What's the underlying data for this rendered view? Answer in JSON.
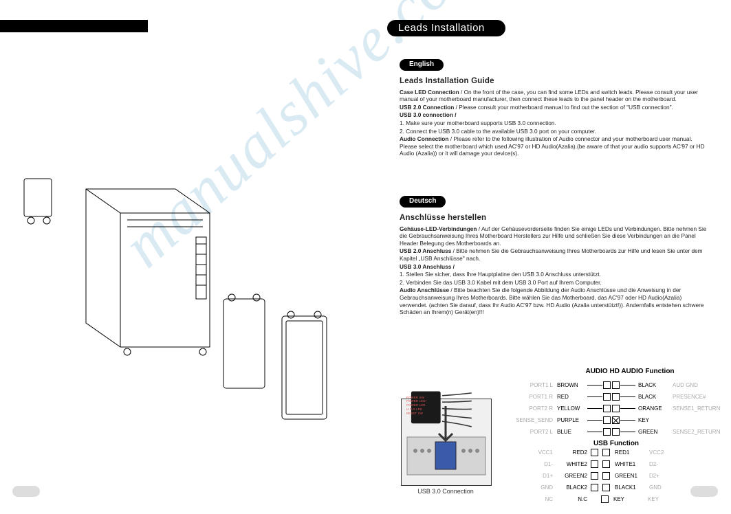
{
  "watermark": "manualshive.com",
  "header": {
    "title": "Leads Installation"
  },
  "english": {
    "lang": "English",
    "h": "Leads Installation Guide",
    "p1b": "Case LED Connection",
    "p1": " / On the front of the case, you can find some LEDs and switch leads. Please consult your user manual of your motherboard manufacturer, then connect these leads to the panel header on the motherboard.",
    "p2b": "USB 2.0 Connection",
    "p2": " / Please consult your motherboard manual to find out the section of \"USB connection\".",
    "p3b": "USB 3.0 connection /",
    "p3a": "1. Make sure your motherboard supports USB 3.0 connection.",
    "p3c": "2. Connect the USB 3.0 cable to the available USB 3.0 port on your computer.",
    "p4b": "Audio Connection",
    "p4": " / Please refer to the following illustration of Audio connector and your motherboard user manual. Please select the motherboard which used AC'97 or HD Audio(Azalia).(be aware of that your audio supports AC'97 or HD Audio (Azalia)) or it will damage your device(s)."
  },
  "deutsch": {
    "lang": "Deutsch",
    "h": "Anschlüsse herstellen",
    "p1b": "Gehäuse-LED-Verbindungen",
    "p1": " / Auf der Gehäusevorderseite finden Sie einige LEDs und Verbindungen. Bitte nehmen Sie die Gebrauchsanweisung Ihres Motherboard Herstellers zur Hilfe und schließen Sie diese Verbindungen an die Panel Header Belegung des Motherboards an.",
    "p2b": "USB 2.0 Anschluss",
    "p2": " / Bitte nehmen Sie die Gebrauchsanweisung Ihres Motherboards zur Hilfe und lesen Sie unter dem Kapitel „USB Anschlüsse\" nach.",
    "p3b": "USB 3.0 Anschluss /",
    "p3a": "1. Stellen Sie sicher, dass Ihre Hauptplatine den USB 3.0 Anschluss unterstützt.",
    "p3c": "2. Verbinden Sie das USB 3.0 Kabel mit dem USB 3.0 Port auf Ihrem Computer.",
    "p4b": "Audio Anschlüsse",
    "p4": " / Bitte beachten Sie die folgende Abbildung der Audio Anschlüsse und die Anweisung in der Gebrauchsanweisung Ihres Motherboards. Bitte wählen Sie das Motherboard, das AC'97 oder HD Audio(Azalia) verwendet. (achten Sie darauf, dass Ihr Audio AC'97 bzw. HD Audio (Azalia unterstützt!)). Andernfalls entstehen schwere Schäden an Ihrem(n) Gerät(en)!!!"
  },
  "audio": {
    "title": "AUDIO HD AUDIO Function",
    "rows": [
      {
        "lg": "PORT1 L",
        "lc": "BROWN",
        "rc": "BLACK",
        "rg": "AUD GND"
      },
      {
        "lg": "PORT1 R",
        "lc": "RED",
        "rc": "BLACK",
        "rg": "PRESENCE#"
      },
      {
        "lg": "PORT2 R",
        "lc": "YELLOW",
        "rc": "ORANGE",
        "rg": "SENSE1_RETURN"
      },
      {
        "lg": "SENSE_SEND",
        "lc": "PURPLE",
        "rc": "KEY",
        "rg": "",
        "nobox": true
      },
      {
        "lg": "PORT2 L",
        "lc": "BLUE",
        "rc": "GREEN",
        "rg": "SENSE2_RETURN"
      }
    ],
    "colors": {
      "grey": "#aaaaaa",
      "text": "#000000"
    }
  },
  "usb": {
    "title": "USB Function",
    "rows": [
      {
        "lg": "VCC1",
        "lc": "RED2",
        "rc": "RED1",
        "rg": "VCC2"
      },
      {
        "lg": "D1-",
        "lc": "WHITE2",
        "rc": "WHITE1",
        "rg": "D2-"
      },
      {
        "lg": "D1+",
        "lc": "GREEN2",
        "rc": "GREEN1",
        "rg": "D2+"
      },
      {
        "lg": "GND",
        "lc": "BLACK2",
        "rc": "BLACK1",
        "rg": "GND"
      },
      {
        "lg": "NC",
        "lc": "N.C",
        "rc": "KEY",
        "rg": "KEY",
        "leftx": true
      }
    ]
  },
  "usb3": {
    "caption": "USB 3.0 Connection"
  },
  "leadbox": {
    "labels": [
      "POWER SW",
      "POWER LED+",
      "POWER LED-",
      "H.D.D LED",
      "RESET SW"
    ]
  }
}
